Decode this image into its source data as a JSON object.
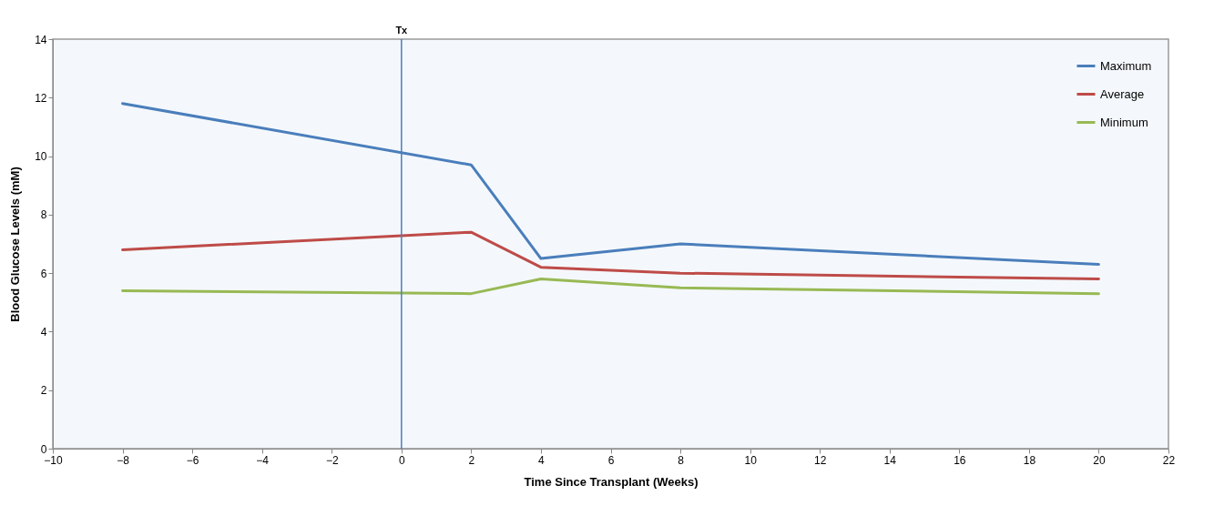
{
  "chart_data": {
    "type": "line",
    "xlabel": "Time Since Transplant (Weeks)",
    "ylabel": "Blood Glucose Levels (mM)",
    "x": [
      -8,
      2,
      4,
      8,
      20
    ],
    "series": [
      {
        "name": "Maximum",
        "color": "#4a7ebb",
        "values": [
          11.8,
          9.7,
          6.5,
          7.0,
          6.3
        ]
      },
      {
        "name": "Average",
        "color": "#be4b48",
        "values": [
          6.8,
          7.4,
          6.2,
          6.0,
          5.8
        ]
      },
      {
        "name": "Minimum",
        "color": "#98b954",
        "values": [
          5.4,
          5.3,
          5.8,
          5.5,
          5.3
        ]
      }
    ],
    "xlim": [
      -10,
      22
    ],
    "xticks": [
      -10,
      -8,
      -6,
      -4,
      -2,
      0,
      2,
      4,
      6,
      8,
      10,
      12,
      14,
      16,
      18,
      20,
      22
    ],
    "ylim": [
      0,
      14
    ],
    "yticks": [
      0,
      2,
      4,
      6,
      8,
      10,
      12,
      14
    ],
    "ref_lines": [
      {
        "axis": "x",
        "value": 0,
        "label": "Tx",
        "color": "#4a7ebb"
      }
    ],
    "grid": false,
    "legend": "top right",
    "marker": "none",
    "line_style": "solid"
  }
}
